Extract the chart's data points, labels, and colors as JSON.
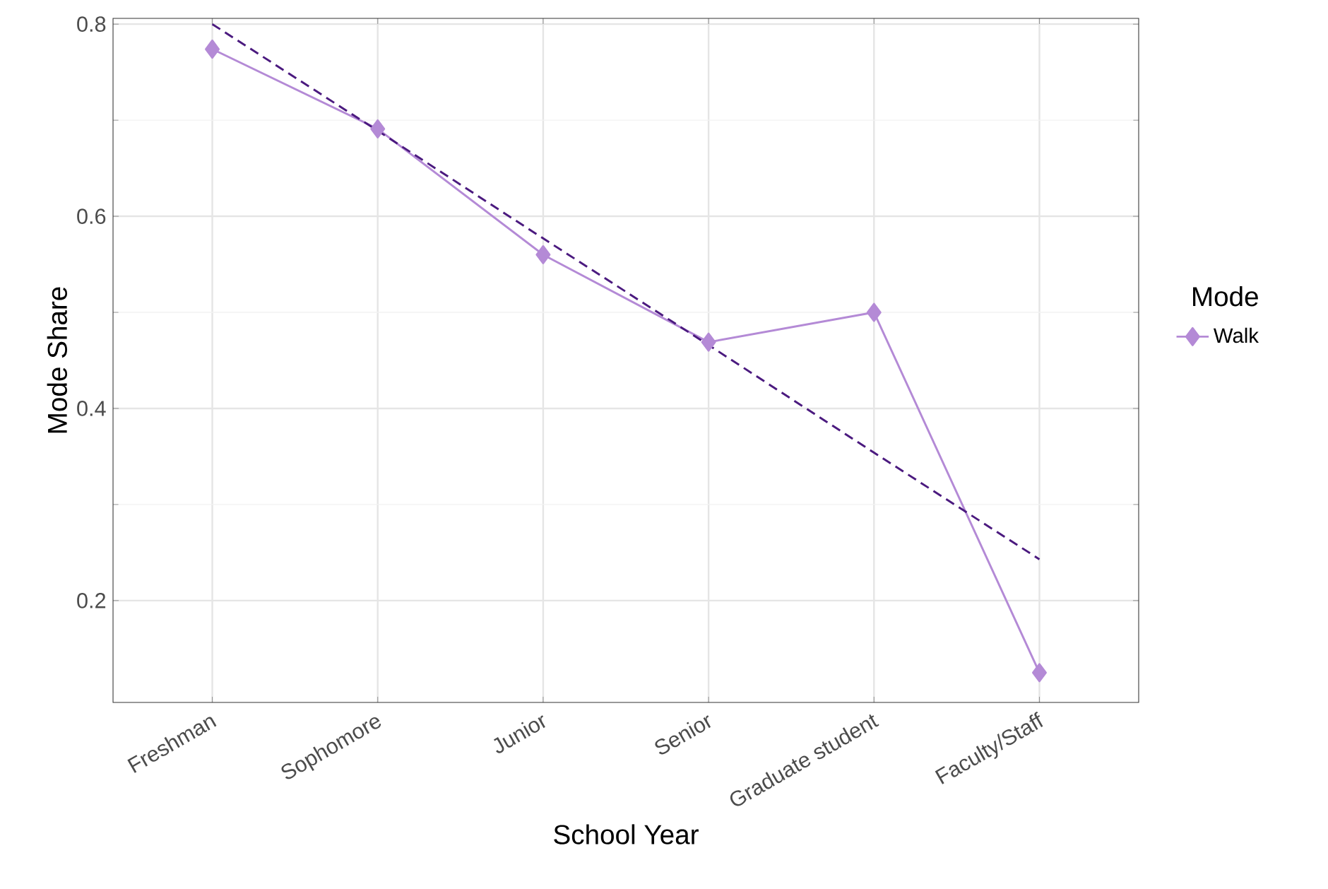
{
  "chart_data": {
    "type": "line",
    "xlabel": "School Year",
    "ylabel": "Mode Share",
    "legend_title": "Mode",
    "categories": [
      "Freshman",
      "Sophomore",
      "Junior",
      "Senior",
      "Graduate student",
      "Faculty/Staff"
    ],
    "series": [
      {
        "name": "Walk",
        "color": "#b48ad6",
        "values": [
          0.774,
          0.691,
          0.56,
          0.469,
          0.5,
          0.125
        ],
        "marker": "diamond",
        "line_style": "solid"
      },
      {
        "color": "#4b1a7f",
        "values": [
          0.8,
          0.689,
          0.577,
          0.466,
          0.354,
          0.243
        ],
        "marker": "none",
        "line_style": "dashed"
      }
    ],
    "ylim": [
      0.094,
      0.806
    ],
    "yticks": [
      0.2,
      0.4,
      0.6,
      0.8
    ],
    "grid": true,
    "legend": "right"
  }
}
